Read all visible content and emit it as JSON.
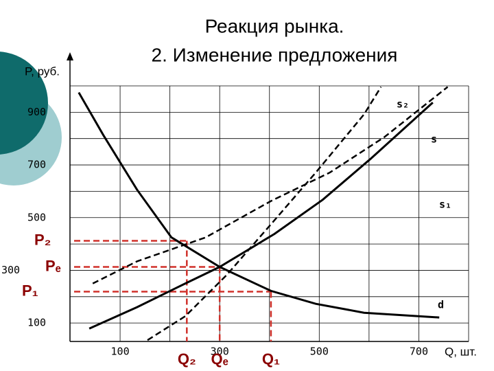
{
  "chart_data": {
    "type": "line",
    "title": "Реакция рынка.",
    "subtitle": "2. Изменение предложения",
    "y_label": "P, руб.",
    "x_label": "Q, шт.",
    "xlim": [
      0,
      800
    ],
    "ylim": [
      0,
      1000
    ],
    "xticks": [
      100,
      300,
      500,
      700
    ],
    "yticks": [
      100,
      300,
      500,
      700,
      900
    ],
    "x_grid": [
      100,
      200,
      300,
      400,
      500,
      600,
      700,
      800
    ],
    "y_grid": [
      100,
      200,
      300,
      400,
      500,
      600,
      700,
      800,
      900,
      1000
    ],
    "series": [
      {
        "name": "d",
        "color": "#000000",
        "style": "solid",
        "x": [
          17,
          66,
          134,
          203,
          300,
          403,
          493,
          590,
          741
        ],
        "values": [
          975,
          814,
          606,
          425,
          313,
          222,
          173,
          139,
          121
        ]
      },
      {
        "name": "s",
        "color": "#000000",
        "style": "solid",
        "x": [
          38,
          134,
          231,
          300,
          410,
          507,
          603,
          728
        ],
        "values": [
          79,
          160,
          250,
          313,
          438,
          568,
          723,
          937
        ]
      },
      {
        "name": "s₁",
        "color": "#000000",
        "style": "dashed",
        "x": [
          45,
          134,
          272,
          403,
          521,
          631,
          758
        ],
        "values": [
          250,
          334,
          425,
          563,
          671,
          806,
          996
        ]
      },
      {
        "name": "s₂",
        "color": "#000000",
        "style": "dashed",
        "x": [
          155,
          231,
          314,
          410,
          493,
          590,
          624
        ],
        "values": [
          35,
          126,
          282,
          490,
          671,
          892,
          996
        ]
      }
    ],
    "guides": [
      {
        "p_label": "P₂",
        "q_label": "Q₂",
        "p": 412,
        "q": 234
      },
      {
        "p_label": "Pₑ",
        "q_label": "Qₑ",
        "p": 313,
        "q": 300
      },
      {
        "p_label": "P₁",
        "q_label": "Q₁",
        "p": 219,
        "q": 403
      }
    ],
    "guide_color": "#d0302a"
  }
}
